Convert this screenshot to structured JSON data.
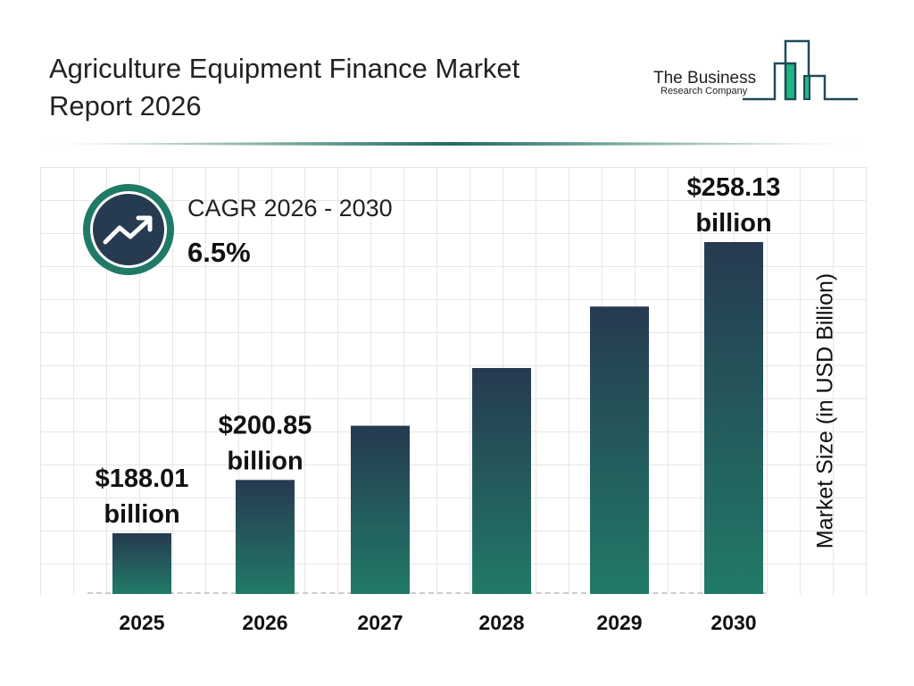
{
  "header": {
    "title": "Agriculture Equipment Finance Market Report 2026",
    "logo_text_line1": "The Business",
    "logo_text_line2": "Research Company"
  },
  "cagr": {
    "label": "CAGR 2026 - 2030",
    "value": "6.5%",
    "icon": "trending-up-icon"
  },
  "colors": {
    "bar_top": "#263a50",
    "bar_bottom": "#217a68",
    "accent": "#1f7a67",
    "logo_green": "#21b585",
    "logo_dark": "#1e4a5a"
  },
  "chart_data": {
    "type": "bar",
    "title": "Agriculture Equipment Finance Market Report 2026",
    "ylabel": "Market Size (in USD Billion)",
    "xlabel": "",
    "categories": [
      "2025",
      "2026",
      "2027",
      "2028",
      "2029",
      "2030"
    ],
    "values": [
      188.01,
      200.85,
      213.9,
      227.8,
      242.6,
      258.13
    ],
    "data_labels": [
      {
        "index": 0,
        "line1": "$188.01",
        "line2": "billion"
      },
      {
        "index": 1,
        "line1": "$200.85",
        "line2": "billion"
      },
      {
        "index": 5,
        "line1": "$258.13",
        "line2": "billion"
      }
    ],
    "grid": true
  }
}
